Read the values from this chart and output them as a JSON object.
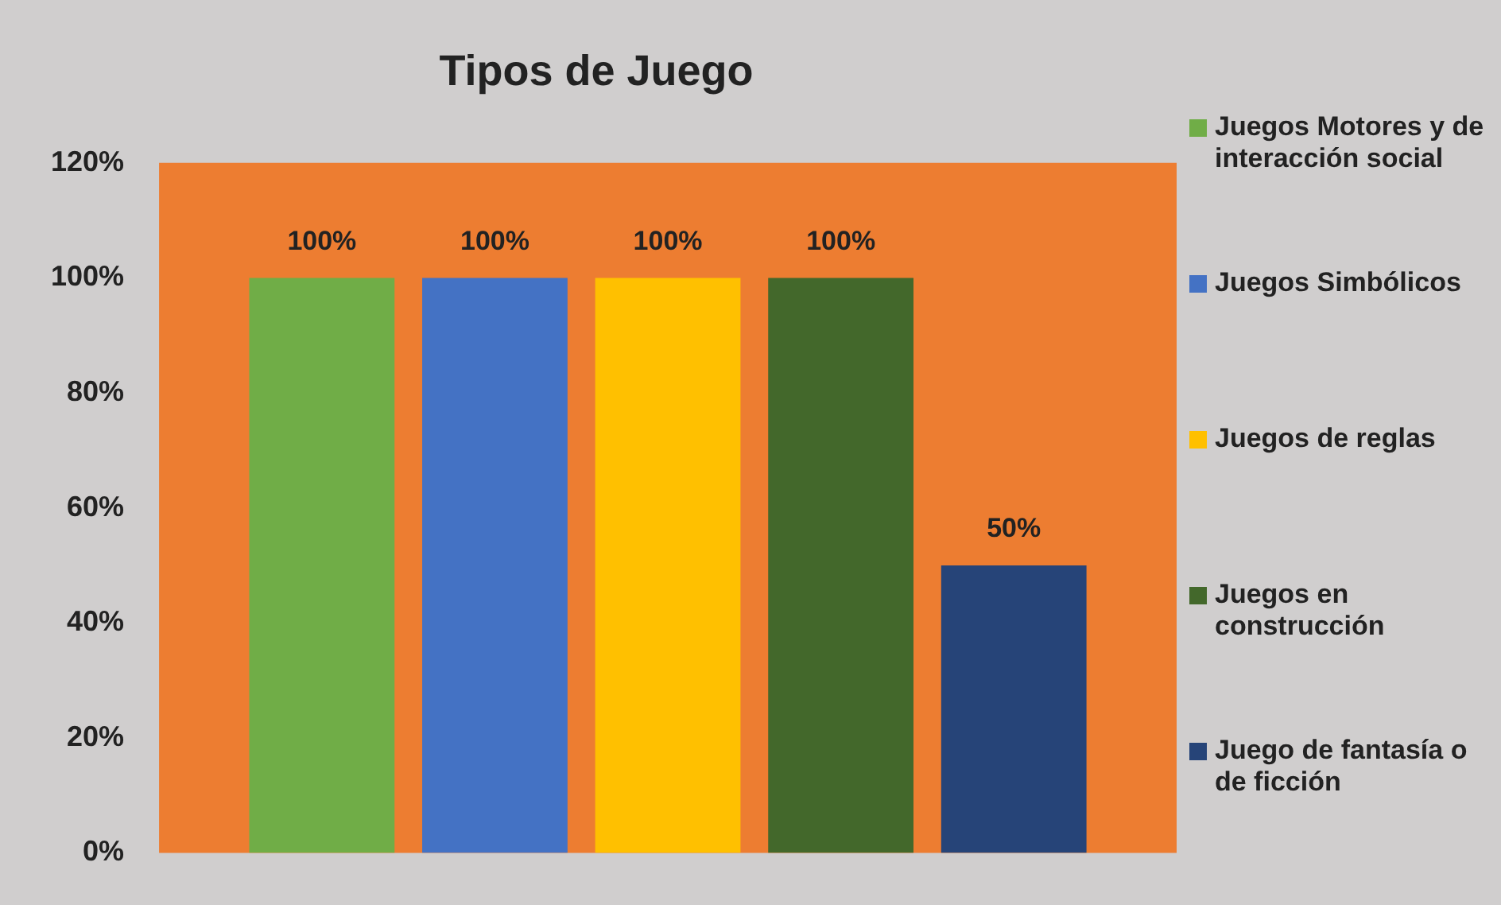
{
  "chart_data": {
    "type": "bar",
    "title": "Tipos de Juego",
    "categories": [
      null
    ],
    "series": [
      {
        "name": "Juegos Motores y de interacción social",
        "color": "#70ad47",
        "values": [
          100
        ],
        "value_labels": [
          "100%"
        ]
      },
      {
        "name": "Juegos Simbólicos",
        "color": "#4472c4",
        "values": [
          100
        ],
        "value_labels": [
          "100%"
        ]
      },
      {
        "name": "Juegos de reglas",
        "color": "#ffc000",
        "values": [
          100
        ],
        "value_labels": [
          "100%"
        ]
      },
      {
        "name": "Juegos en construcción",
        "color": "#43682b",
        "values": [
          100
        ],
        "value_labels": [
          "100%"
        ]
      },
      {
        "name": "Juego de fantasía o de ficción",
        "color": "#264478",
        "values": [
          50
        ],
        "value_labels": [
          "50%"
        ]
      }
    ],
    "ylim": [
      0,
      120
    ],
    "yticks": [
      {
        "value": 0,
        "label": "0%"
      },
      {
        "value": 20,
        "label": "20%"
      },
      {
        "value": 40,
        "label": "40%"
      },
      {
        "value": 60,
        "label": "60%"
      },
      {
        "value": 80,
        "label": "80%"
      },
      {
        "value": 100,
        "label": "100%"
      },
      {
        "value": 120,
        "label": "120%"
      }
    ],
    "grid": false,
    "legend": "right"
  }
}
